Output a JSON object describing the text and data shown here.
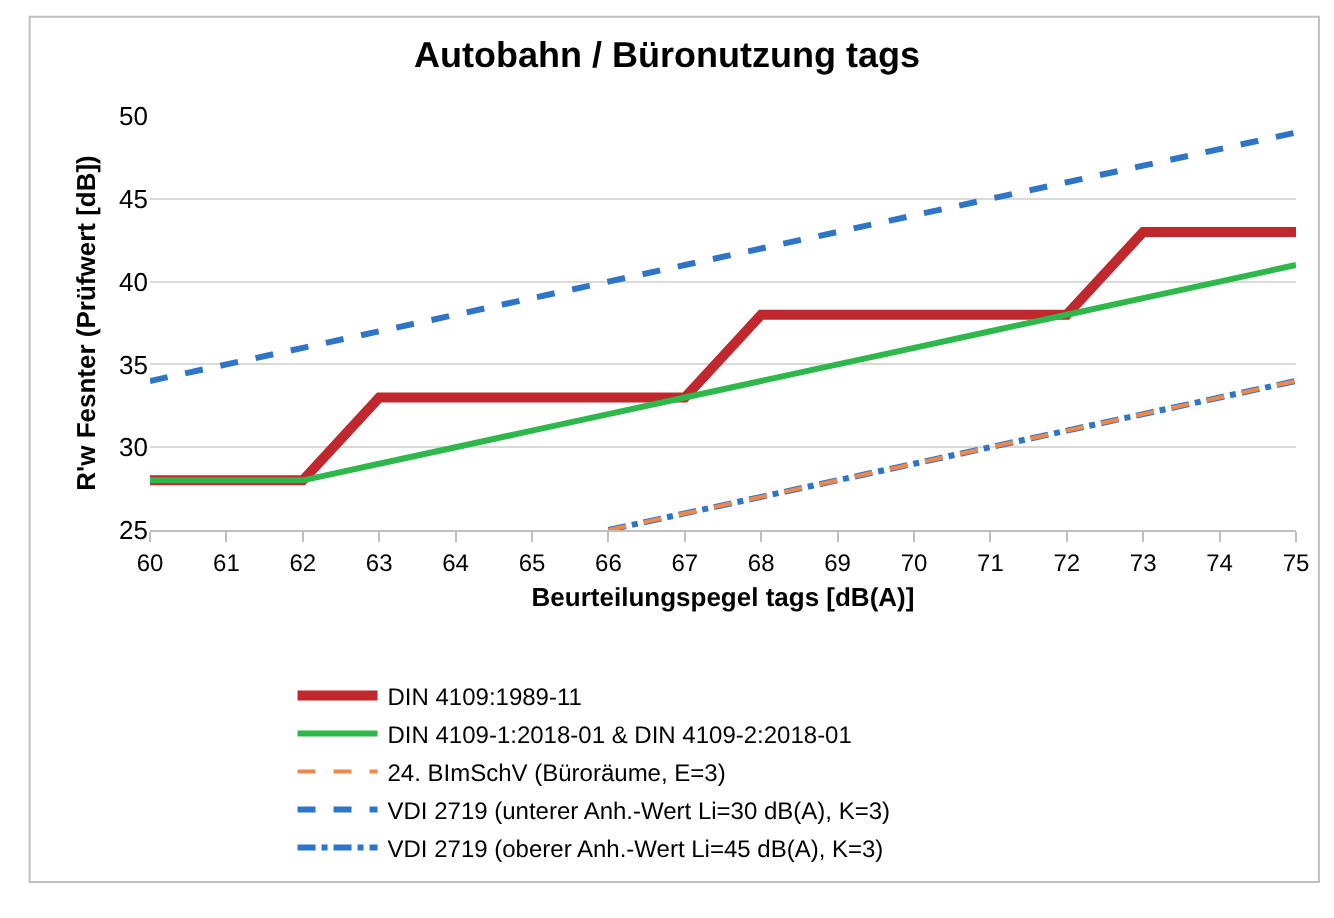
{
  "chart_data": {
    "type": "line",
    "title": "Autobahn / Büronutzung tags",
    "xlabel": "Beurteilungspegel tags [dB(A)]",
    "ylabel": "R'w Fesnter (Prüfwert [dB])",
    "x": [
      60,
      61,
      62,
      63,
      64,
      65,
      66,
      67,
      68,
      69,
      70,
      71,
      72,
      73,
      74,
      75
    ],
    "xlim": [
      60,
      75
    ],
    "xticks": [
      60,
      61,
      62,
      63,
      64,
      65,
      66,
      67,
      68,
      69,
      70,
      71,
      72,
      73,
      74,
      75
    ],
    "ylim": [
      25,
      50
    ],
    "yticks": [
      25,
      30,
      35,
      40,
      45,
      50
    ],
    "grid": "y",
    "legend": "bottom",
    "marker": "none",
    "series": [
      {
        "name": "DIN 4109:1989-11",
        "color": "#c0282d",
        "line_style": "solid",
        "values": [
          28,
          28,
          28,
          33,
          33,
          33,
          33,
          33,
          38,
          38,
          38,
          38,
          38,
          43,
          43,
          43
        ]
      },
      {
        "name": "DIN 4109-1:2018-01 & DIN 4109-2:2018-01",
        "color": "#2eb84b",
        "line_style": "solid",
        "values": [
          28,
          28,
          28,
          29,
          30,
          31,
          32,
          33,
          34,
          35,
          36,
          37,
          38,
          39,
          40,
          41
        ]
      },
      {
        "name": "24. BImSchV (Büroräume, E=3)",
        "color": "#f0884a",
        "line_style": "dashed",
        "values": [
          null,
          null,
          null,
          null,
          null,
          null,
          25,
          26,
          27,
          28,
          29,
          30,
          31,
          32,
          33,
          34
        ]
      },
      {
        "name": "VDI 2719 (unterer Anh.-Wert Li=30 dB(A), K=3)",
        "color": "#2e75c7",
        "line_style": "dashed",
        "values": [
          34,
          35,
          36,
          37,
          38,
          39,
          40,
          41,
          42,
          43,
          44,
          45,
          46,
          47,
          48,
          49
        ]
      },
      {
        "name": "VDI 2719 (oberer Anh.-Wert Li=45 dB(A), K=3)",
        "color": "#2e75c7",
        "line_style": "dashdot",
        "values": [
          null,
          null,
          null,
          null,
          null,
          null,
          25,
          26,
          27,
          28,
          29,
          30,
          31,
          32,
          33,
          34
        ]
      }
    ]
  }
}
